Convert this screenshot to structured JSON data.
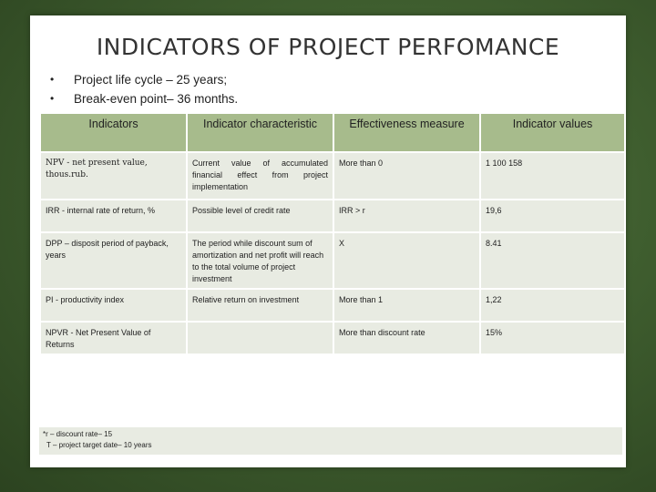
{
  "title": "INDICATORS OF PROJECT PERFOMANCE",
  "bullets": [
    "Project life cycle – 25 years;",
    "Break-even point– 36 months."
  ],
  "table": {
    "headers": [
      "Indicators",
      "Indicator characteristic",
      "Effectiveness measure",
      "Indicator values"
    ],
    "rows": [
      {
        "indicator": "NPV - net present value, thous.rub.",
        "characteristic": "Current value of accumulated financial effect from project implementation",
        "measure": "More than 0",
        "value": "1 100 158"
      },
      {
        "indicator": "IRR - internal rate of return, %",
        "characteristic": "Possible level of credit rate",
        "measure": "IRR > r",
        "value": "19,6"
      },
      {
        "indicator": "DPP – disposit period of payback, years",
        "characteristic": "The period while discount sum of amortization and net profit will reach to the total volume of project investment",
        "measure": "Х",
        "value": "8.41"
      },
      {
        "indicator": "PI - productivity index",
        "characteristic": "Relative return on investment",
        "measure": "More than 1",
        "value": "1,22"
      },
      {
        "indicator": "NPVR - Net Present Value of Returns",
        "characteristic": "",
        "measure": "More than discount rate",
        "value": "15%"
      }
    ]
  },
  "footnote": {
    "line1": "*r – discount rate– 15",
    "line2": "T – project target date– 10 years"
  }
}
